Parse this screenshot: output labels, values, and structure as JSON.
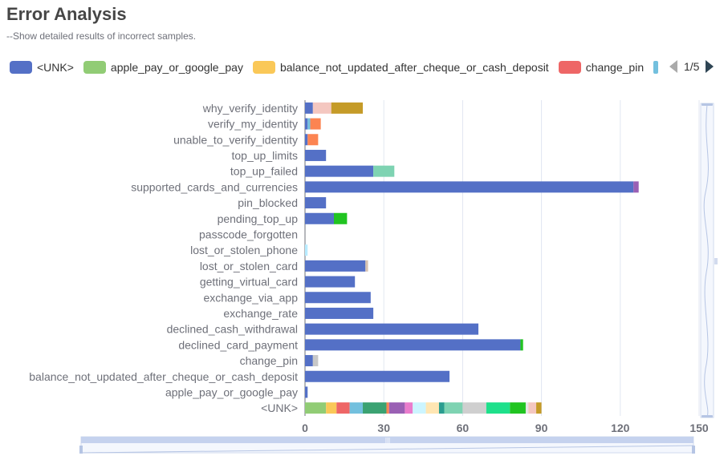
{
  "title": "Error Analysis",
  "subtitle": "--Show detailed results of incorrect samples.",
  "legend": {
    "items": [
      {
        "name": "<UNK>",
        "color": "#5470c6"
      },
      {
        "name": "apple_pay_or_google_pay",
        "color": "#91cc75"
      },
      {
        "name": "balance_not_updated_after_cheque_or_cash_deposit",
        "color": "#fac858"
      },
      {
        "name": "change_pin",
        "color": "#ee6666"
      }
    ],
    "page": "1/5"
  },
  "chart_data": {
    "type": "bar",
    "orientation": "horizontal",
    "stacked": true,
    "categories": [
      "<UNK>",
      "apple_pay_or_google_pay",
      "balance_not_updated_after_cheque_or_cash_deposit",
      "change_pin",
      "declined_card_payment",
      "declined_cash_withdrawal",
      "exchange_rate",
      "exchange_via_app",
      "getting_virtual_card",
      "lost_or_stolen_card",
      "lost_or_stolen_phone",
      "passcode_forgotten",
      "pending_top_up",
      "pin_blocked",
      "supported_cards_and_currencies",
      "top_up_failed",
      "top_up_limits",
      "unable_to_verify_identity",
      "verify_my_identity",
      "why_verify_identity"
    ],
    "x_ticks": [
      0,
      30,
      60,
      90,
      120,
      150
    ],
    "xlim": [
      0,
      150
    ],
    "stacks": [
      [
        {
          "value": 8,
          "color": "#91cc75"
        },
        {
          "value": 4,
          "color": "#fac858"
        },
        {
          "value": 5,
          "color": "#ee6666"
        },
        {
          "value": 5,
          "color": "#73c0de"
        },
        {
          "value": 9,
          "color": "#3ba272"
        },
        {
          "value": 1,
          "color": "#fc8452"
        },
        {
          "value": 6,
          "color": "#9a60b4"
        },
        {
          "value": 3,
          "color": "#ea7ccc"
        },
        {
          "value": 5,
          "color": "#ccf5ff"
        },
        {
          "value": 5,
          "color": "#ffe6b3"
        },
        {
          "value": 2,
          "color": "#2a9d8f"
        },
        {
          "value": 7,
          "color": "#7ed3b2"
        },
        {
          "value": 9,
          "color": "#cfcfcf"
        },
        {
          "value": 9,
          "color": "#1ee08b"
        },
        {
          "value": 6,
          "color": "#21c421"
        },
        {
          "value": 1,
          "color": "#e6e6e6"
        },
        {
          "value": 3,
          "color": "#f4c7c0"
        },
        {
          "value": 2,
          "color": "#c59b28"
        }
      ],
      [
        {
          "value": 1,
          "color": "#5470c6"
        }
      ],
      [
        {
          "value": 55,
          "color": "#5470c6"
        }
      ],
      [
        {
          "value": 3,
          "color": "#5470c6"
        },
        {
          "value": 2,
          "color": "#c8c8c8"
        }
      ],
      [
        {
          "value": 82,
          "color": "#5470c6"
        },
        {
          "value": 1,
          "color": "#21c421"
        }
      ],
      [
        {
          "value": 66,
          "color": "#5470c6"
        }
      ],
      [
        {
          "value": 26,
          "color": "#5470c6"
        }
      ],
      [
        {
          "value": 25,
          "color": "#5470c6"
        }
      ],
      [
        {
          "value": 19,
          "color": "#5470c6"
        }
      ],
      [
        {
          "value": 23,
          "color": "#5470c6"
        },
        {
          "value": 1,
          "color": "#d8c2b0"
        }
      ],
      [
        {
          "value": 1,
          "color": "#b8ecff"
        }
      ],
      [],
      [
        {
          "value": 11,
          "color": "#5470c6"
        },
        {
          "value": 5,
          "color": "#21c421"
        }
      ],
      [
        {
          "value": 8,
          "color": "#5470c6"
        }
      ],
      [
        {
          "value": 125,
          "color": "#5470c6"
        },
        {
          "value": 2,
          "color": "#9a60b4"
        }
      ],
      [
        {
          "value": 26,
          "color": "#5470c6"
        },
        {
          "value": 8,
          "color": "#7ed3b2"
        }
      ],
      [
        {
          "value": 8,
          "color": "#5470c6"
        }
      ],
      [
        {
          "value": 1,
          "color": "#5470c6"
        },
        {
          "value": 4,
          "color": "#fc8452"
        }
      ],
      [
        {
          "value": 1,
          "color": "#5470c6"
        },
        {
          "value": 1,
          "color": "#73c0de"
        },
        {
          "value": 4,
          "color": "#fc8452"
        }
      ],
      [
        {
          "value": 3,
          "color": "#5470c6"
        },
        {
          "value": 7,
          "color": "#f4c7c0"
        },
        {
          "value": 12,
          "color": "#c59b28"
        }
      ]
    ]
  },
  "colors": {
    "axis_text": "#6e7079",
    "grid": "#e0e6f1",
    "zoom_fill": "#d2dbee",
    "zoom_border": "#b6c5e4"
  }
}
